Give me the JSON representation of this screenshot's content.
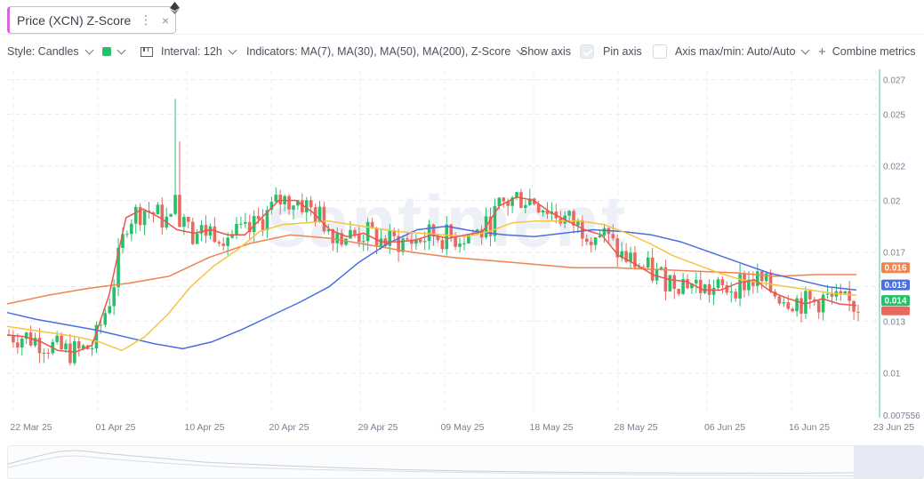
{
  "tab": {
    "title": "Price (XCN) Z-Score",
    "menu_glyph": "⋮",
    "close_glyph": "×"
  },
  "asset_icon": "ethereum-icon",
  "toolbar": {
    "style_label": "Style: Candles",
    "color_swatch": "#26c06a",
    "interval_label": "Interval: 12h",
    "indicators_label": "Indicators: MA(7), MA(30), MA(50), MA(200), Z-Score",
    "show_axis_label": "Show axis",
    "show_axis_checked": true,
    "pin_axis_label": "Pin axis",
    "pin_axis_checked": false,
    "axis_label": "Axis max/min: Auto/Auto",
    "combine_label": "Combine metrics"
  },
  "watermark": "santiment",
  "colors": {
    "up": "#26c06a",
    "down": "#e9695f",
    "ma7": "#e8554e",
    "ma30": "#f5c443",
    "ma50": "#4a6ee0",
    "ma200": "#f0834f",
    "price_line": "#8fdcae"
  },
  "chart_data": {
    "type": "candlestick",
    "y_ticks": [
      "0.027",
      "0.025",
      "0.022",
      "0.02",
      "0.017",
      "0.015",
      "0.013",
      "0.01",
      "0.007556"
    ],
    "ylim": [
      0.007556,
      0.0275
    ],
    "x_ticks": [
      "22 Mar 25",
      "01 Apr 25",
      "10 Apr 25",
      "20 Apr 25",
      "29 Apr 25",
      "09 May 25",
      "18 May 25",
      "28 May 25",
      "06 Jun 25",
      "16 Jun 25",
      "23 Jun 25"
    ],
    "price_badges": [
      {
        "value": "0.016",
        "color": "#f0834f"
      },
      {
        "value": "0.015",
        "color": "#4a6ee0"
      },
      {
        "value": "0.014",
        "color": "#26c06a"
      }
    ],
    "ma7": [
      0.0122,
      0.0121,
      0.0118,
      0.0113,
      0.0112,
      0.0116,
      0.0145,
      0.019,
      0.0195,
      0.019,
      0.0183,
      0.0181,
      0.0183,
      0.018,
      0.018,
      0.019,
      0.02,
      0.02,
      0.0193,
      0.0183,
      0.0179,
      0.0181,
      0.0176,
      0.0176,
      0.0177,
      0.018,
      0.0178,
      0.018,
      0.0182,
      0.0197,
      0.0202,
      0.02,
      0.0193,
      0.0188,
      0.0183,
      0.018,
      0.0168,
      0.0163,
      0.0157,
      0.0154,
      0.0153,
      0.0148,
      0.0148,
      0.0152,
      0.0154,
      0.0147,
      0.0143,
      0.014,
      0.0143,
      0.014,
      0.0139
    ],
    "ma30": [
      0.0127,
      0.0125,
      0.0123,
      0.0121,
      0.0118,
      0.0113,
      0.0121,
      0.0134,
      0.015,
      0.0162,
      0.0171,
      0.0182,
      0.0186,
      0.0187,
      0.0188,
      0.0186,
      0.0184,
      0.0182,
      0.0181,
      0.018,
      0.0179,
      0.0182,
      0.0187,
      0.0188,
      0.0188,
      0.0188,
      0.0186,
      0.0181,
      0.0175,
      0.0168,
      0.0163,
      0.0158,
      0.0154,
      0.0152,
      0.015,
      0.0148,
      0.0146,
      0.0145
    ],
    "ma50": [
      0.0135,
      0.0131,
      0.0128,
      0.0125,
      0.0121,
      0.0117,
      0.0114,
      0.0118,
      0.0125,
      0.0133,
      0.0141,
      0.015,
      0.0164,
      0.0175,
      0.0183,
      0.0185,
      0.0182,
      0.018,
      0.0179,
      0.0181,
      0.0183,
      0.0182,
      0.018,
      0.0176,
      0.017,
      0.0164,
      0.0158,
      0.0154,
      0.015,
      0.0148
    ],
    "ma200": [
      0.014,
      0.0145,
      0.0149,
      0.0152,
      0.0156,
      0.0167,
      0.0175,
      0.018,
      0.0178,
      0.0174,
      0.017,
      0.0167,
      0.0165,
      0.0163,
      0.0161,
      0.0161,
      0.016,
      0.0159,
      0.0158,
      0.0156,
      0.0157,
      0.0157
    ]
  }
}
